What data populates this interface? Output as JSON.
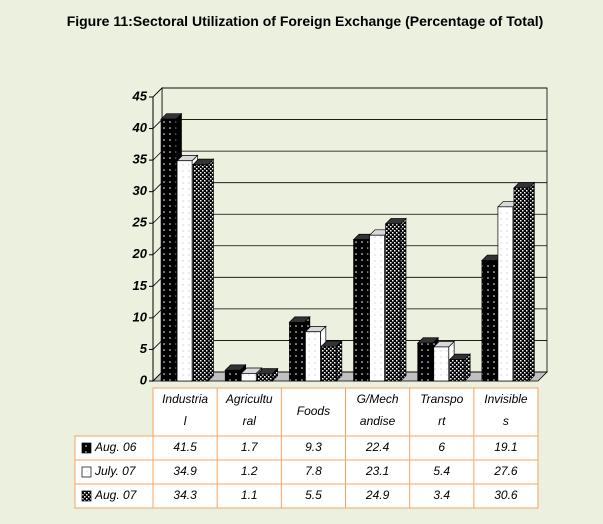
{
  "chart_data": {
    "type": "bar3d",
    "title": "Figure 11:Sectoral Utilization of Foreign Exchange (Percentage of Total)",
    "categories": [
      "Industria\nl",
      "Agricultu\nral",
      "Foods",
      "G/Mech\nandise",
      "Transpo\nrt",
      "Invisible\ns"
    ],
    "series": [
      {
        "name": "Aug. 06",
        "color": "#000000",
        "values": [
          41.5,
          1.7,
          9.3,
          22.4,
          6,
          19.1
        ]
      },
      {
        "name": "July. 07",
        "color": "#ffffff",
        "values": [
          34.9,
          1.2,
          7.8,
          23.1,
          5.4,
          27.6
        ]
      },
      {
        "name": "Aug. 07",
        "color": "#000000",
        "values": [
          34.3,
          1.1,
          5.5,
          24.9,
          3.4,
          30.6
        ]
      }
    ],
    "ylim": [
      0,
      45
    ],
    "yticks": [
      0,
      5,
      10,
      15,
      20,
      25,
      30,
      35,
      40,
      45
    ],
    "grid": true
  }
}
